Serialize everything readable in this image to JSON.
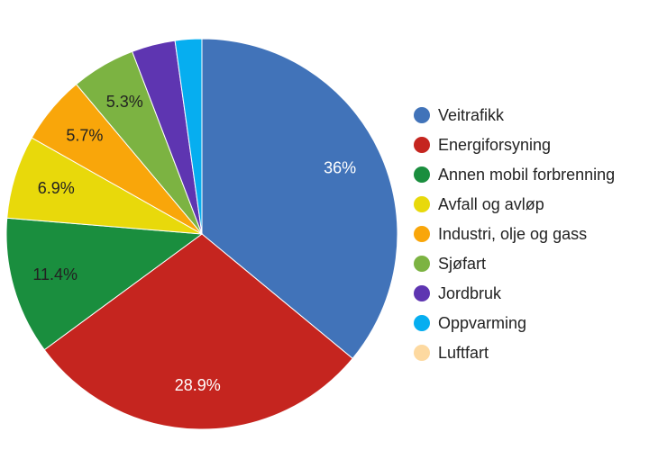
{
  "chart_data": {
    "type": "pie",
    "categories": [
      "Veitrafikk",
      "Energiforsyning",
      "Annen mobil forbrenning",
      "Avfall og avløp",
      "Industri, olje og gass",
      "Sjøfart",
      "Jordbruk",
      "Oppvarming",
      "Luftfart"
    ],
    "values": [
      36,
      28.9,
      11.4,
      6.9,
      5.7,
      5.3,
      3.6,
      2.2,
      0
    ],
    "value_labels": [
      "36%",
      "28.9%",
      "11.4%",
      "6.9%",
      "5.7%",
      "5.3%",
      null,
      null,
      null
    ],
    "colors": [
      "#4173b9",
      "#c5251f",
      "#1a8e3e",
      "#e8d90b",
      "#f9a60a",
      "#7cb342",
      "#5e35b1",
      "#06aef0",
      "#fdd9a0"
    ],
    "legend": "right"
  }
}
